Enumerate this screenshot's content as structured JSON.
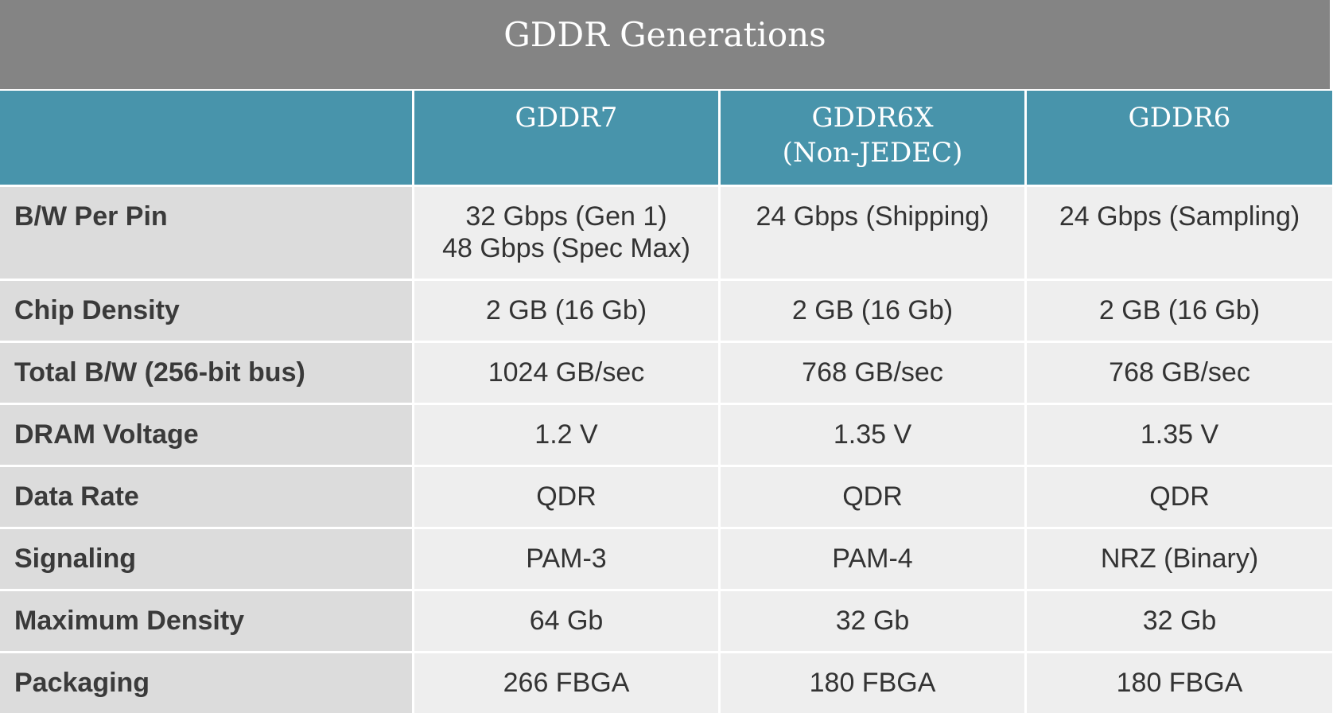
{
  "title": "GDDR Generations",
  "columns": [
    "",
    "GDDR7",
    "GDDR6X\n(Non-JEDEC)",
    "GDDR6"
  ],
  "rows": [
    {
      "label": "B/W Per Pin",
      "values": [
        "32 Gbps (Gen 1)\n48 Gbps (Spec Max)",
        "24 Gbps (Shipping)",
        "24 Gbps (Sampling)"
      ]
    },
    {
      "label": "Chip Density",
      "values": [
        "2 GB (16 Gb)",
        "2 GB (16 Gb)",
        "2 GB (16 Gb)"
      ]
    },
    {
      "label": "Total B/W (256-bit bus)",
      "values": [
        "1024 GB/sec",
        "768 GB/sec",
        "768 GB/sec"
      ]
    },
    {
      "label": "DRAM Voltage",
      "values": [
        "1.2 V",
        "1.35 V",
        "1.35 V"
      ]
    },
    {
      "label": "Data Rate",
      "values": [
        "QDR",
        "QDR",
        "QDR"
      ]
    },
    {
      "label": "Signaling",
      "values": [
        "PAM-3",
        "PAM-4",
        "NRZ (Binary)"
      ]
    },
    {
      "label": "Maximum Density",
      "values": [
        "64 Gb",
        "32 Gb",
        "32 Gb"
      ]
    },
    {
      "label": "Packaging",
      "values": [
        "266 FBGA",
        "180 FBGA",
        "180 FBGA"
      ]
    }
  ],
  "colors": {
    "title_bar": "#848484",
    "header_row": "#4894ab",
    "label_cell": "#dcdcdc",
    "value_cell": "#eeeeee",
    "header_text": "#ffffff",
    "body_text": "#333333"
  }
}
